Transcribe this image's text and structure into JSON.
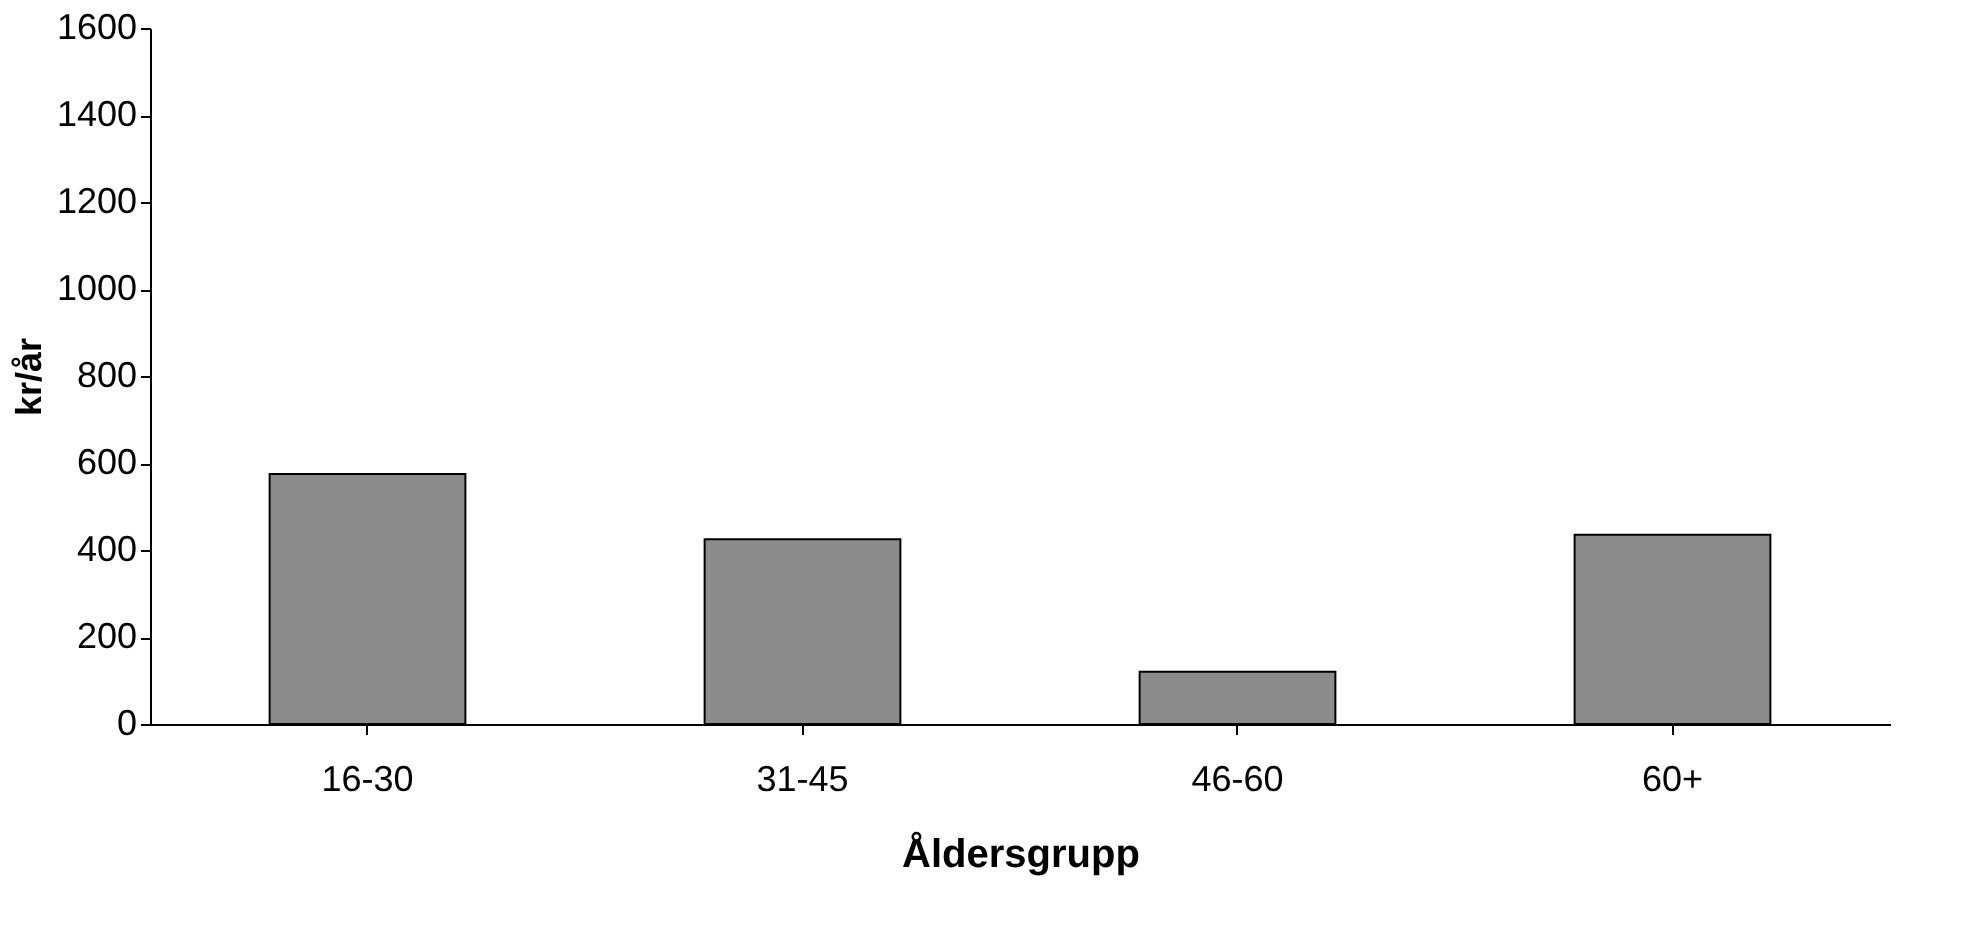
{
  "chart_data": {
    "type": "bar",
    "xlabel": "Åldersgrupp",
    "ylabel": "kr/år",
    "categories": [
      "16-30",
      "31-45",
      "46-60",
      "60+"
    ],
    "values": [
      575,
      425,
      120,
      435
    ],
    "color": "#8c8c8c",
    "ylim": [
      0,
      1600
    ],
    "yticks": [
      0,
      200,
      400,
      600,
      800,
      1000,
      1200,
      1400,
      1600
    ],
    "grid": false
  }
}
